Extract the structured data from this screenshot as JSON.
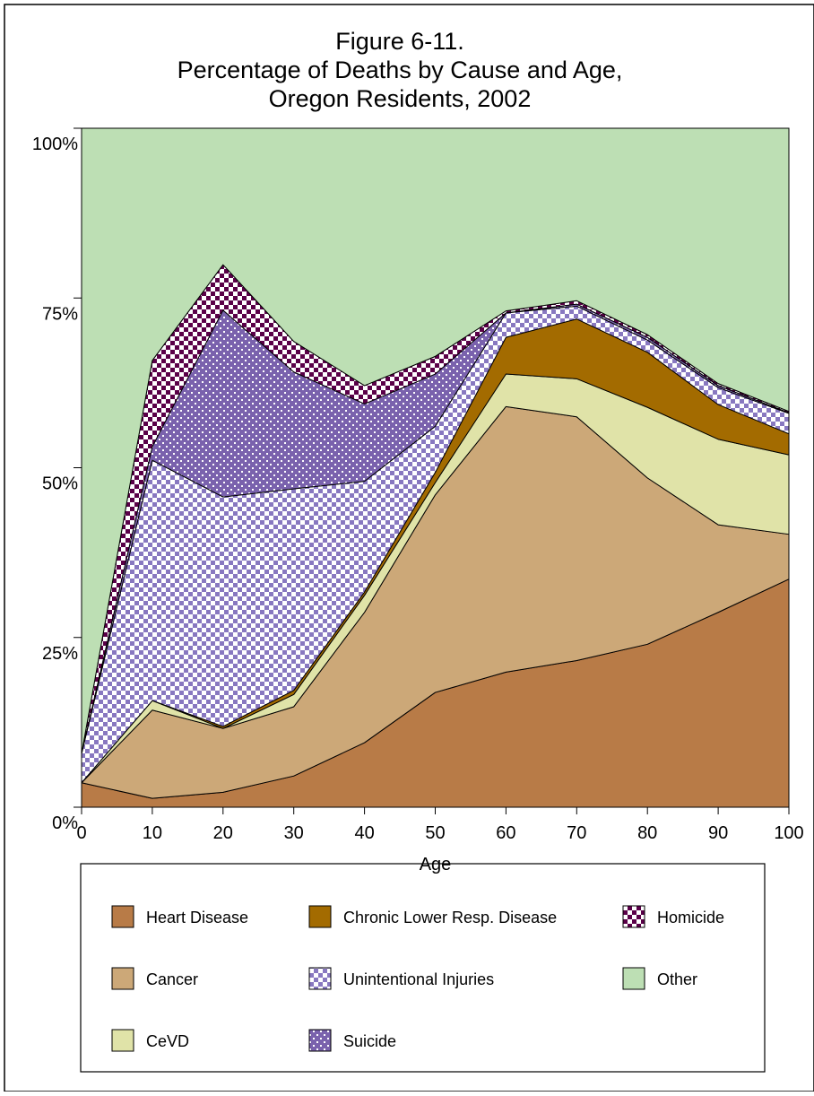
{
  "chart_data": {
    "type": "stacked-area",
    "title": [
      "Figure 6-11.",
      "Percentage of Deaths by Cause and Age,",
      "Oregon Residents, 2002"
    ],
    "x_label": "Age",
    "x": [
      0,
      10,
      20,
      30,
      40,
      50,
      60,
      70,
      80,
      90,
      100
    ],
    "xlim": [
      0,
      100
    ],
    "xticks": [
      0,
      10,
      20,
      30,
      40,
      50,
      60,
      70,
      80,
      90,
      100
    ],
    "ylim": [
      0,
      100
    ],
    "yticks": [
      {
        "value": 0,
        "label": "0%"
      },
      {
        "value": 25,
        "label": "25%"
      },
      {
        "value": 50,
        "label": "50%"
      },
      {
        "value": 75,
        "label": "75%"
      },
      {
        "value": 100,
        "label": "100%"
      }
    ],
    "series": [
      {
        "name": "Heart Disease",
        "color": "#b87b47",
        "pattern": "solid",
        "values": [
          3.6,
          1.3,
          2.2,
          4.6,
          9.5,
          16.9,
          19.9,
          21.6,
          24.0,
          28.7,
          33.6
        ]
      },
      {
        "name": "Cancer",
        "color": "#cca878",
        "pattern": "solid",
        "values": [
          0,
          13.0,
          9.4,
          10.2,
          19.2,
          29.1,
          39.1,
          35.9,
          24.5,
          12.9,
          6.6
        ]
      },
      {
        "name": "CeVD",
        "color": "#e0e3a8",
        "pattern": "solid",
        "values": [
          0,
          1.4,
          0,
          1.8,
          2.5,
          1.8,
          4.8,
          5.6,
          10.4,
          12.6,
          11.7
        ]
      },
      {
        "name": "Chronic Lower Resp. Disease",
        "color": "#a36b00",
        "pattern": "solid",
        "values": [
          0,
          0,
          0.3,
          0.6,
          0.5,
          1.5,
          5.4,
          8.8,
          8.1,
          5.1,
          3.1
        ]
      },
      {
        "name": "Unintentional Injuries",
        "color": "#8878c0",
        "pattern": "checker",
        "values": [
          4.3,
          35.4,
          33.8,
          29.7,
          16.3,
          6.8,
          3.6,
          1.9,
          1.8,
          2.5,
          3.0
        ]
      },
      {
        "name": "Suicide",
        "color": "#7a62ad",
        "pattern": "dots",
        "values": [
          0,
          2.0,
          27.5,
          17.2,
          11.4,
          7.7,
          0,
          0.3,
          0.4,
          0.3,
          0.1
        ]
      },
      {
        "name": "Homicide",
        "color": "#5a0048",
        "pattern": "checker",
        "values": [
          0,
          12.7,
          6.7,
          4.5,
          2.7,
          2.6,
          0.3,
          0.5,
          0.4,
          0.3,
          0.2
        ]
      },
      {
        "name": "Other",
        "color": "#bddfb4",
        "pattern": "solid",
        "values": [
          92.1,
          34.2,
          20.1,
          31.4,
          37.9,
          33.6,
          26.9,
          25.4,
          30.4,
          37.6,
          41.7
        ]
      }
    ]
  }
}
